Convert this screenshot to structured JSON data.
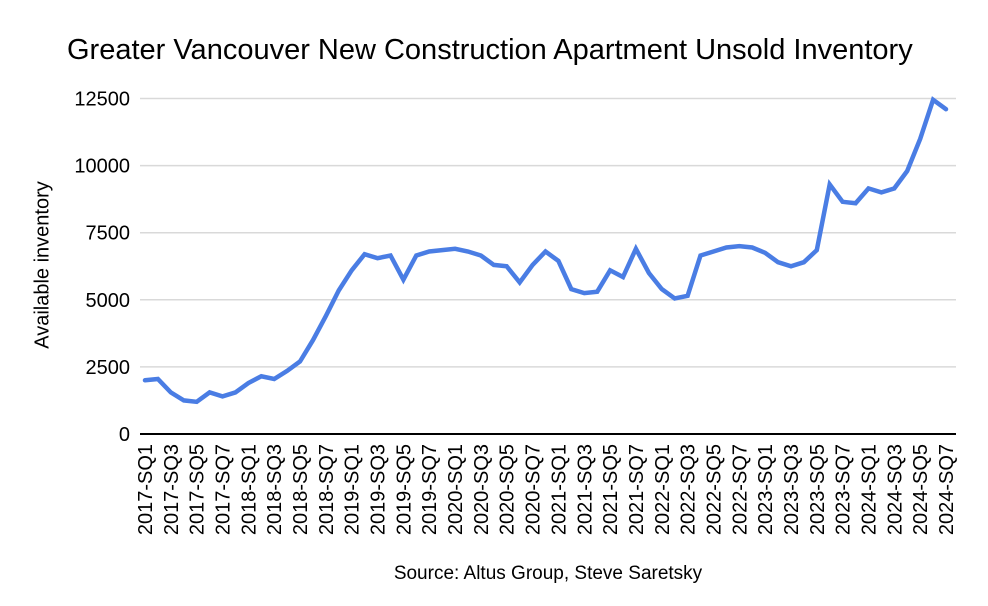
{
  "chart": {
    "title": "Greater Vancouver New Construction Apartment Unsold Inventory",
    "y_axis_title": "Available inventory",
    "source": "Source: Altus Group, Steve Saretsky",
    "line_color": "#4a7de4",
    "grid_color": "#d9d9d9",
    "baseline_color": "#000000",
    "text_color": "#000000",
    "background_color": "#ffffff"
  },
  "chart_data": {
    "type": "line",
    "title": "Greater Vancouver New Construction Apartment Unsold Inventory",
    "xlabel": "",
    "ylabel": "Available inventory",
    "source": "Source: Altus Group, Steve Saretsky",
    "ylim": [
      0,
      12500
    ],
    "y_ticks": [
      0,
      2500,
      5000,
      7500,
      10000,
      12500
    ],
    "x_tick_every": 2,
    "grid": "horizontal",
    "legend": "none",
    "series_name": "Available inventory",
    "categories": [
      "2017-SQ1",
      "2017-SQ2",
      "2017-SQ3",
      "2017-SQ4",
      "2017-SQ5",
      "2017-SQ6",
      "2017-SQ7",
      "2017-SQ8",
      "2018-SQ1",
      "2018-SQ2",
      "2018-SQ3",
      "2018-SQ4",
      "2018-SQ5",
      "2018-SQ6",
      "2018-SQ7",
      "2018-SQ8",
      "2019-SQ1",
      "2019-SQ2",
      "2019-SQ3",
      "2019-SQ4",
      "2019-SQ5",
      "2019-SQ6",
      "2019-SQ7",
      "2019-SQ8",
      "2020-SQ1",
      "2020-SQ2",
      "2020-SQ3",
      "2020-SQ4",
      "2020-SQ5",
      "2020-SQ6",
      "2020-SQ7",
      "2020-SQ8",
      "2021-SQ1",
      "2021-SQ2",
      "2021-SQ3",
      "2021-SQ4",
      "2021-SQ5",
      "2021-SQ6",
      "2021-SQ7",
      "2021-SQ8",
      "2022-SQ1",
      "2022-SQ2",
      "2022-SQ3",
      "2022-SQ4",
      "2022-SQ5",
      "2022-SQ6",
      "2022-SQ7",
      "2022-SQ8",
      "2023-SQ1",
      "2023-SQ2",
      "2023-SQ3",
      "2023-SQ4",
      "2023-SQ5",
      "2023-SQ6",
      "2023-SQ7",
      "2023-SQ8",
      "2024-SQ1",
      "2024-SQ2",
      "2024-SQ3",
      "2024-SQ4",
      "2024-SQ5",
      "2024-SQ6",
      "2024-SQ7"
    ],
    "values": [
      2000,
      2050,
      1550,
      1250,
      1200,
      1550,
      1400,
      1550,
      1900,
      2150,
      2050,
      2350,
      2700,
      3500,
      4400,
      5350,
      6100,
      6700,
      6550,
      6650,
      5750,
      6650,
      6800,
      6850,
      6900,
      6800,
      6650,
      6300,
      6250,
      5650,
      6300,
      6800,
      6450,
      5400,
      5250,
      5300,
      6100,
      5850,
      6900,
      6000,
      5400,
      5050,
      5150,
      6650,
      6800,
      6950,
      7000,
      6950,
      6750,
      6400,
      6250,
      6400,
      6850,
      9300,
      8650,
      8600,
      9150,
      9000,
      9150,
      9800,
      11000,
      12450,
      12100
    ]
  }
}
